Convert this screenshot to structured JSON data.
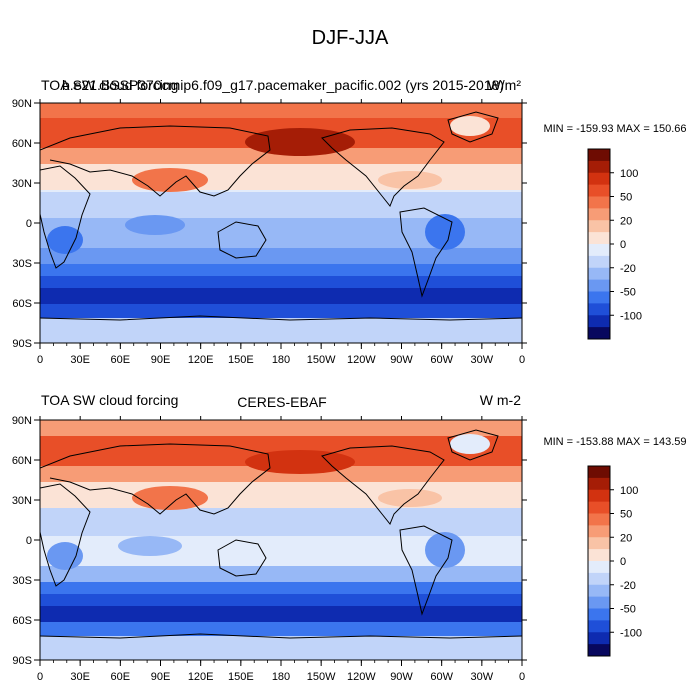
{
  "figure": {
    "title": "DJF-JJA"
  },
  "chart_data": [
    {
      "type": "heatmap",
      "title_left": "TOA SW cloud forcing",
      "title_center": "b.e21.BSSP370cmip6.f09_g17.pacemaker_pacific.002 (yrs 2015-2018)",
      "units": "W/m²",
      "stats": "MIN = -159.93 MAX = 150.66",
      "x_ticks": [
        "0",
        "30E",
        "60E",
        "90E",
        "120E",
        "150E",
        "180",
        "150W",
        "120W",
        "90W",
        "60W",
        "30W",
        "0"
      ],
      "y_ticks": [
        "90N",
        "60N",
        "30N",
        "0",
        "30S",
        "60S",
        "90S"
      ],
      "xlim": [
        0,
        360
      ],
      "ylim": [
        -90,
        90
      ],
      "colorbar_labels": [
        "100",
        "50",
        "20",
        "0",
        "-20",
        "-50",
        "-100"
      ],
      "min": -159.93,
      "max": 150.66
    },
    {
      "type": "heatmap",
      "title_left": "TOA SW cloud forcing",
      "title_center": "CERES-EBAF",
      "units": "W m-2",
      "stats": "MIN = -153.88 MAX = 143.59",
      "x_ticks": [
        "0",
        "30E",
        "60E",
        "90E",
        "120E",
        "150E",
        "180",
        "150W",
        "120W",
        "90W",
        "60W",
        "30W",
        "0"
      ],
      "y_ticks": [
        "90N",
        "60N",
        "30N",
        "0",
        "30S",
        "60S",
        "90S"
      ],
      "xlim": [
        0,
        360
      ],
      "ylim": [
        -90,
        90
      ],
      "colorbar_labels": [
        "100",
        "50",
        "20",
        "0",
        "-20",
        "-50",
        "-100"
      ],
      "min": -153.88,
      "max": 143.59
    }
  ],
  "palette": [
    "#08085e",
    "#0e2bb0",
    "#1f4fd8",
    "#3b75ee",
    "#6a98f2",
    "#97b8f6",
    "#c1d4f9",
    "#e3ecfb",
    "#fbe3d6",
    "#f9c3a6",
    "#f79c76",
    "#f2744a",
    "#e84f28",
    "#d23210",
    "#a51d06",
    "#6e0c02"
  ]
}
